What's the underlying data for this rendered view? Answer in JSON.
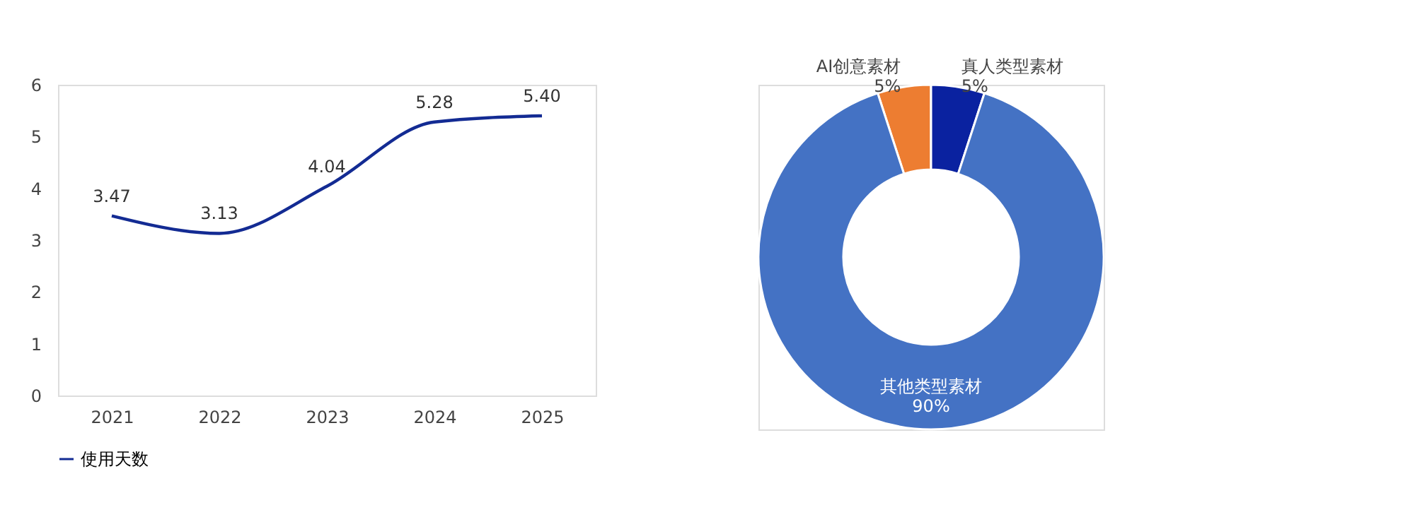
{
  "chart_data": [
    {
      "type": "line",
      "categories": [
        "2021",
        "2022",
        "2023",
        "2024",
        "2025"
      ],
      "series": [
        {
          "name": "使用天数",
          "color": "#132b93",
          "values": [
            3.47,
            3.13,
            4.04,
            5.28,
            5.4
          ]
        }
      ],
      "value_labels": [
        "3.47",
        "3.13",
        "4.04",
        "5.28",
        "5.40"
      ],
      "ylim": [
        0,
        6
      ],
      "yticks": [
        0,
        1,
        2,
        3,
        4,
        5,
        6
      ],
      "grid": false,
      "legend": "bottom",
      "marker": "none",
      "line_style": "solid"
    },
    {
      "type": "donut",
      "categories": [
        "AI创意素材",
        "真人类型素材",
        "其他类型素材"
      ],
      "values": [
        5,
        5,
        90
      ],
      "colors": [
        "#ed7d31",
        "#0a22a0",
        "#4472c4"
      ],
      "value_labels": [
        "5%",
        "5%",
        "90%"
      ],
      "legend": false
    }
  ]
}
